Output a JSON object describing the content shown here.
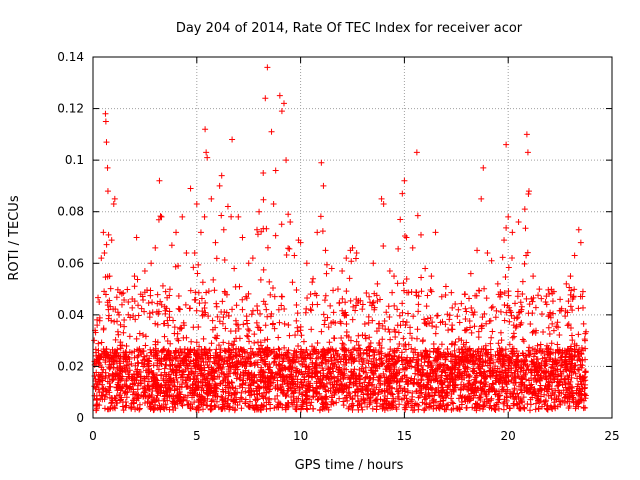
{
  "chart_data": {
    "type": "scatter",
    "title": "Day 204 of 2014, Rate Of TEC Index for receiver acor",
    "xlabel": "GPS time / hours",
    "ylabel": "ROTI / TECUs",
    "xlim": [
      0,
      25
    ],
    "ylim": [
      0,
      0.14
    ],
    "x_ticks": [
      0,
      5,
      10,
      15,
      20,
      25
    ],
    "x_tick_labels": [
      "0",
      "5",
      "10",
      "15",
      "20",
      "25"
    ],
    "y_ticks": [
      0,
      0.02,
      0.04,
      0.06,
      0.08,
      0.1,
      0.12,
      0.14
    ],
    "y_tick_labels": [
      "0",
      "0.02",
      "0.04",
      "0.06",
      "0.08",
      "0.1",
      "0.12",
      "0.14"
    ],
    "grid": true,
    "marker": "+",
    "series": [
      {
        "name": "ROTI",
        "color": "#ff0000",
        "points": [
          [
            0.1,
            0.034
          ],
          [
            0.2,
            0.036
          ],
          [
            0.3,
            0.045
          ],
          [
            0.4,
            0.062
          ],
          [
            0.5,
            0.072
          ],
          [
            0.55,
            0.064
          ],
          [
            0.6,
            0.118
          ],
          [
            0.62,
            0.115
          ],
          [
            0.65,
            0.107
          ],
          [
            0.7,
            0.097
          ],
          [
            0.72,
            0.088
          ],
          [
            0.75,
            0.071
          ],
          [
            0.8,
            0.055
          ],
          [
            0.9,
            0.069
          ],
          [
            1.0,
            0.083
          ],
          [
            1.05,
            0.085
          ],
          [
            1.2,
            0.041
          ],
          [
            1.5,
            0.038
          ],
          [
            1.7,
            0.045
          ],
          [
            2.0,
            0.055
          ],
          [
            2.1,
            0.07
          ],
          [
            2.3,
            0.048
          ],
          [
            2.5,
            0.057
          ],
          [
            2.8,
            0.06
          ],
          [
            3.0,
            0.066
          ],
          [
            3.2,
            0.092
          ],
          [
            3.3,
            0.078
          ],
          [
            3.5,
            0.049
          ],
          [
            3.8,
            0.067
          ],
          [
            4.0,
            0.072
          ],
          [
            4.1,
            0.059
          ],
          [
            4.3,
            0.078
          ],
          [
            4.5,
            0.064
          ],
          [
            4.7,
            0.089
          ],
          [
            4.9,
            0.064
          ],
          [
            5.0,
            0.083
          ],
          [
            5.2,
            0.072
          ],
          [
            5.4,
            0.112
          ],
          [
            5.45,
            0.103
          ],
          [
            5.5,
            0.101
          ],
          [
            5.7,
            0.085
          ],
          [
            5.9,
            0.068
          ],
          [
            6.1,
            0.09
          ],
          [
            6.2,
            0.094
          ],
          [
            6.3,
            0.073
          ],
          [
            6.5,
            0.082
          ],
          [
            6.7,
            0.108
          ],
          [
            6.8,
            0.058
          ],
          [
            7.0,
            0.078
          ],
          [
            7.2,
            0.07
          ],
          [
            7.5,
            0.06
          ],
          [
            7.7,
            0.062
          ],
          [
            7.9,
            0.073
          ],
          [
            8.0,
            0.08
          ],
          [
            8.2,
            0.095
          ],
          [
            8.3,
            0.124
          ],
          [
            8.4,
            0.136
          ],
          [
            8.6,
            0.111
          ],
          [
            8.7,
            0.083
          ],
          [
            8.8,
            0.096
          ],
          [
            9.0,
            0.125
          ],
          [
            9.1,
            0.119
          ],
          [
            9.2,
            0.122
          ],
          [
            9.3,
            0.1
          ],
          [
            9.4,
            0.079
          ],
          [
            9.5,
            0.076
          ],
          [
            9.7,
            0.063
          ],
          [
            9.9,
            0.069
          ],
          [
            10.0,
            0.068
          ],
          [
            10.3,
            0.06
          ],
          [
            10.6,
            0.054
          ],
          [
            10.8,
            0.072
          ],
          [
            11.0,
            0.099
          ],
          [
            11.1,
            0.09
          ],
          [
            11.2,
            0.065
          ],
          [
            11.5,
            0.058
          ],
          [
            11.8,
            0.05
          ],
          [
            12.0,
            0.057
          ],
          [
            12.2,
            0.062
          ],
          [
            12.4,
            0.065
          ],
          [
            12.5,
            0.066
          ],
          [
            12.7,
            0.064
          ],
          [
            13.0,
            0.044
          ],
          [
            13.3,
            0.047
          ],
          [
            13.5,
            0.06
          ],
          [
            13.7,
            0.052
          ],
          [
            13.9,
            0.085
          ],
          [
            14.0,
            0.083
          ],
          [
            14.3,
            0.057
          ],
          [
            14.5,
            0.055
          ],
          [
            14.8,
            0.077
          ],
          [
            14.9,
            0.087
          ],
          [
            15.0,
            0.092
          ],
          [
            15.1,
            0.07
          ],
          [
            15.4,
            0.066
          ],
          [
            15.6,
            0.103
          ],
          [
            15.8,
            0.071
          ],
          [
            16.0,
            0.058
          ],
          [
            16.3,
            0.055
          ],
          [
            16.5,
            0.072
          ],
          [
            16.8,
            0.047
          ],
          [
            17.0,
            0.051
          ],
          [
            17.3,
            0.036
          ],
          [
            17.6,
            0.042
          ],
          [
            17.9,
            0.048
          ],
          [
            18.2,
            0.056
          ],
          [
            18.5,
            0.065
          ],
          [
            18.7,
            0.085
          ],
          [
            18.8,
            0.097
          ],
          [
            19.0,
            0.064
          ],
          [
            19.2,
            0.061
          ],
          [
            19.5,
            0.052
          ],
          [
            19.8,
            0.069
          ],
          [
            19.9,
            0.106
          ],
          [
            20.0,
            0.078
          ],
          [
            20.2,
            0.072
          ],
          [
            20.5,
            0.076
          ],
          [
            20.8,
            0.081
          ],
          [
            20.9,
            0.11
          ],
          [
            20.95,
            0.103
          ],
          [
            21.0,
            0.088
          ],
          [
            21.2,
            0.055
          ],
          [
            21.5,
            0.05
          ],
          [
            21.8,
            0.045
          ],
          [
            22.0,
            0.04
          ],
          [
            22.2,
            0.049
          ],
          [
            22.5,
            0.046
          ],
          [
            22.8,
            0.052
          ],
          [
            23.0,
            0.055
          ],
          [
            23.2,
            0.063
          ],
          [
            23.4,
            0.073
          ],
          [
            23.5,
            0.068
          ],
          [
            23.6,
            0.049
          ],
          [
            23.7,
            0.03
          ]
        ]
      }
    ]
  }
}
